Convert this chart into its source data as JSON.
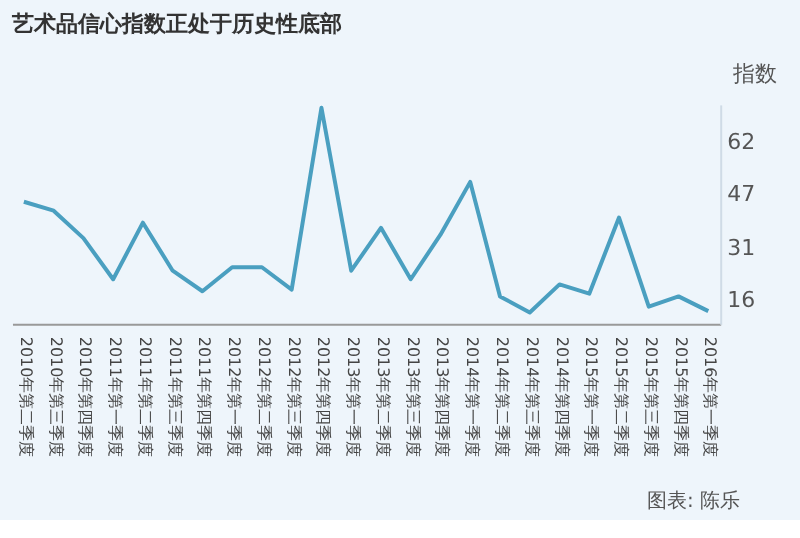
{
  "chart_data": {
    "type": "line",
    "title": "艺术品信心指数正处于历史性底部",
    "ylabel": "指数",
    "categories": [
      "2010年第二季度",
      "2010年第三季度",
      "2010年第四季度",
      "2011年第一季度",
      "2011年第二季度",
      "2011年第三季度",
      "2011年第四季度",
      "2012年第一季度",
      "2012年第二季度",
      "2012年第三季度",
      "2012年第四季度",
      "2013年第一季度",
      "2013年第二季度",
      "2013年第三季度",
      "2013年第四季度",
      "2014年第一季度",
      "2014年第二季度",
      "2014年第三季度",
      "2014年第四季度",
      "2015年第一季度",
      "2015年第二季度",
      "2015年第三季度",
      "2015年第四季度",
      "2016年第一季度"
    ],
    "series": [
      {
        "color": "#4a9fc0",
        "values": [
          44.6,
          42,
          34,
          22,
          38.5,
          24.5,
          18.5,
          25.5,
          25.5,
          19,
          72,
          24.5,
          37,
          22,
          35,
          50.4,
          17,
          12.3,
          20.5,
          17.8,
          40,
          14,
          17,
          12.7
        ]
      }
    ],
    "ylim": [
      9,
      73
    ],
    "yticks": [
      16,
      31,
      47,
      62
    ],
    "grid": false,
    "marker": "none",
    "line_style": "solid",
    "annotations": [
      "图表: 陈乐"
    ]
  }
}
